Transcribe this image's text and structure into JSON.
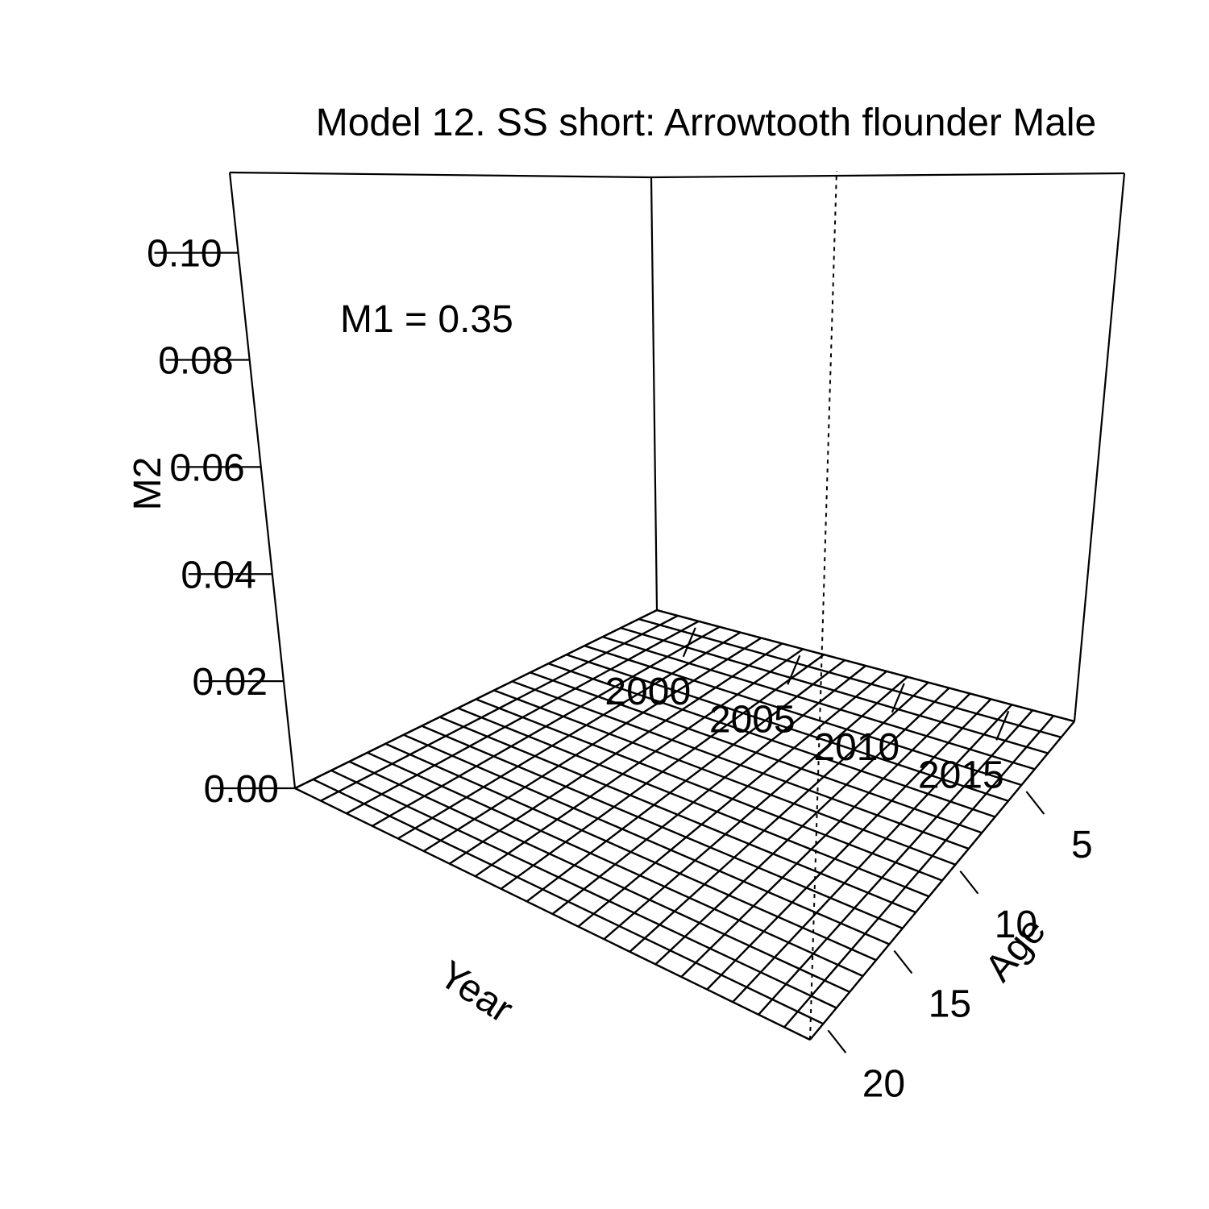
{
  "chart_data": {
    "type": "surface",
    "title": "Model 12. SS short: Arrowtooth flounder Male",
    "annotation": "M1 = 0.35",
    "xlabel": "Year",
    "ylabel": "Age",
    "zlabel": "M2",
    "x": [
      1998,
      1999,
      2000,
      2001,
      2002,
      2003,
      2004,
      2005,
      2006,
      2007,
      2008,
      2009,
      2010,
      2011,
      2012,
      2013,
      2014,
      2015,
      2016,
      2017,
      2018
    ],
    "y": [
      1,
      2,
      3,
      4,
      5,
      6,
      7,
      8,
      9,
      10,
      11,
      12,
      13,
      14,
      15,
      16,
      17,
      18,
      19,
      20,
      21
    ],
    "z_value": 0,
    "xticks": [
      "2000",
      "2005",
      "2010",
      "2015"
    ],
    "xtick_values": [
      2000,
      2005,
      2010,
      2015
    ],
    "yticks": [
      "5",
      "10",
      "15",
      "20"
    ],
    "ytick_values": [
      5,
      10,
      15,
      20
    ],
    "zticks": [
      "0.00",
      "0.02",
      "0.04",
      "0.06",
      "0.08",
      "0.10"
    ],
    "ztick_values": [
      0,
      0.02,
      0.04,
      0.06,
      0.08,
      0.1
    ],
    "zlim": [
      0,
      0.115
    ],
    "reference_line": {
      "year": 2018,
      "style": "dotted"
    }
  }
}
